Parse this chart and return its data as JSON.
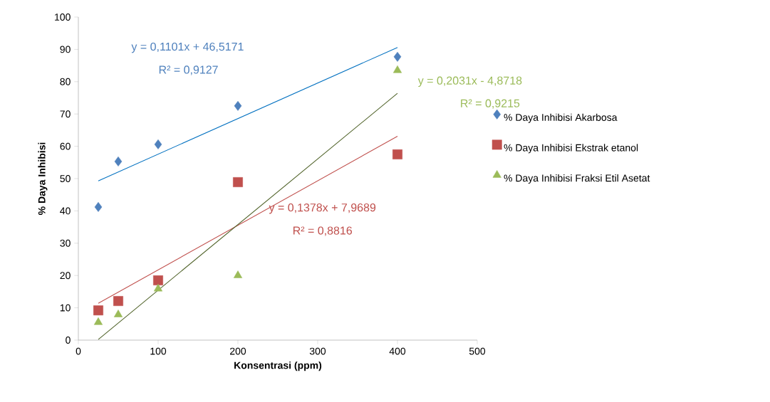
{
  "chart_data": {
    "type": "scatter",
    "xlabel": "Konsentrasi (ppm)",
    "ylabel": "% Daya Inhibisi",
    "xlim": [
      0,
      500
    ],
    "ylim": [
      0,
      100
    ],
    "xticks": [
      0,
      100,
      200,
      300,
      400,
      500
    ],
    "yticks": [
      0,
      10,
      20,
      30,
      40,
      50,
      60,
      70,
      80,
      90,
      100
    ],
    "grid": false,
    "legend": "right",
    "annotations": [
      "y = 0,1101x + 46,5171",
      "R² = 0,9127",
      "y = 0,1378x + 7,9689",
      "R² = 0,8816",
      "y = 0,2031x - 4,8718",
      "R² = 0,9215"
    ],
    "series": [
      {
        "name": "% Daya Inhibisi Akarbosa",
        "color": "#4f81bd",
        "marker": "diamond",
        "x": [
          25,
          50,
          100,
          200,
          400
        ],
        "values": [
          41.2,
          55.3,
          60.6,
          72.5,
          87.7
        ]
      },
      {
        "name": "% Daya Inhibisi Ekstrak etanol",
        "color": "#c0504d",
        "marker": "square",
        "x": [
          25,
          50,
          100,
          200,
          400
        ],
        "values": [
          9.2,
          12.1,
          18.5,
          48.9,
          57.5
        ]
      },
      {
        "name": "% Daya Inhibisi Fraksi Etil Asetat",
        "color": "#9bbb59",
        "marker": "triangle",
        "x": [
          25,
          50,
          100,
          200,
          400
        ],
        "values": [
          5.5,
          7.9,
          15.9,
          20,
          83.5
        ]
      },
      {
        "type": "line",
        "color": "#0070c0",
        "marker": "none",
        "x": [
          25,
          400
        ],
        "values": [
          49.3,
          90.6
        ]
      },
      {
        "type": "line",
        "color": "#c0504d",
        "marker": "none",
        "x": [
          25,
          400
        ],
        "values": [
          11.4,
          63.1
        ]
      },
      {
        "type": "line",
        "color": "#4f6228",
        "marker": "none",
        "x": [
          25,
          400
        ],
        "values": [
          0.2,
          76.4
        ]
      }
    ]
  }
}
